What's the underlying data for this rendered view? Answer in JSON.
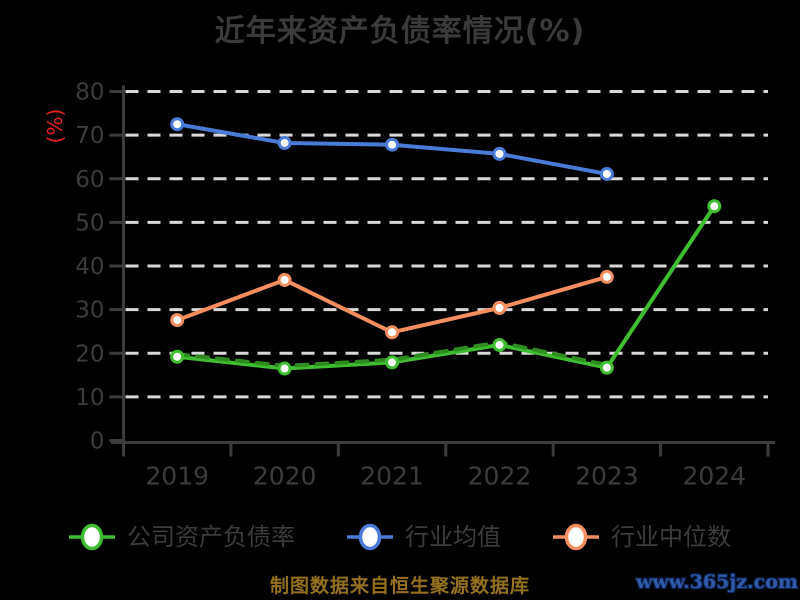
{
  "page": {
    "background": "#000000"
  },
  "title": {
    "text": "近年来资产负债率情况(%)",
    "color": "#3a3a3a"
  },
  "legend": {
    "text_color": "#3c3c3c",
    "items": [
      {
        "label": "公司资产负债率",
        "color": "#3ebe30"
      },
      {
        "label": "行业均值",
        "color": "#4a7bd9"
      },
      {
        "label": "行业中位数",
        "color": "#f78e60"
      }
    ]
  },
  "footer": {
    "source_text": "制图数据来自恒生聚源数据库",
    "source_color": "#94701c",
    "watermark_text": "www.365jz.com",
    "watermark_color": "#2f5aa8"
  },
  "chart_data": {
    "type": "line",
    "title": "近年来资产负债率情况(%)",
    "ylabel": "(%)",
    "ylabel_color": "#e62320",
    "xlabel": "",
    "categories": [
      "2019",
      "2020",
      "2021",
      "2022",
      "2023",
      "2024"
    ],
    "ylim": [
      0,
      80
    ],
    "ytick_interval": 10,
    "grid": "horizontal-dashed",
    "grid_color": "#d9d9d9",
    "axis_color": "#3c3c3c",
    "legend_position": "bottom",
    "series": [
      {
        "name": "公司资产负债率",
        "color": "#3ebe30",
        "line_style": "solid",
        "values": [
          19.2,
          16.5,
          17.9,
          21.9,
          16.7,
          53.7
        ]
      },
      {
        "name": "行业均值",
        "color": "#4a7bd9",
        "line_style": "solid",
        "values": [
          72.5,
          68.2,
          67.8,
          65.7,
          61.1,
          null
        ]
      },
      {
        "name": "行业中位数",
        "color": "#f78e60",
        "line_style": "solid",
        "values": [
          27.6,
          36.8,
          24.8,
          30.4,
          37.5,
          null
        ]
      },
      {
        "id": "company-ratio-dashed-overlay",
        "color": "#2e8c20",
        "line_style": "dashed",
        "marker": false,
        "values": [
          19.8,
          17.1,
          18.5,
          22.5,
          17.3,
          null
        ]
      }
    ]
  }
}
